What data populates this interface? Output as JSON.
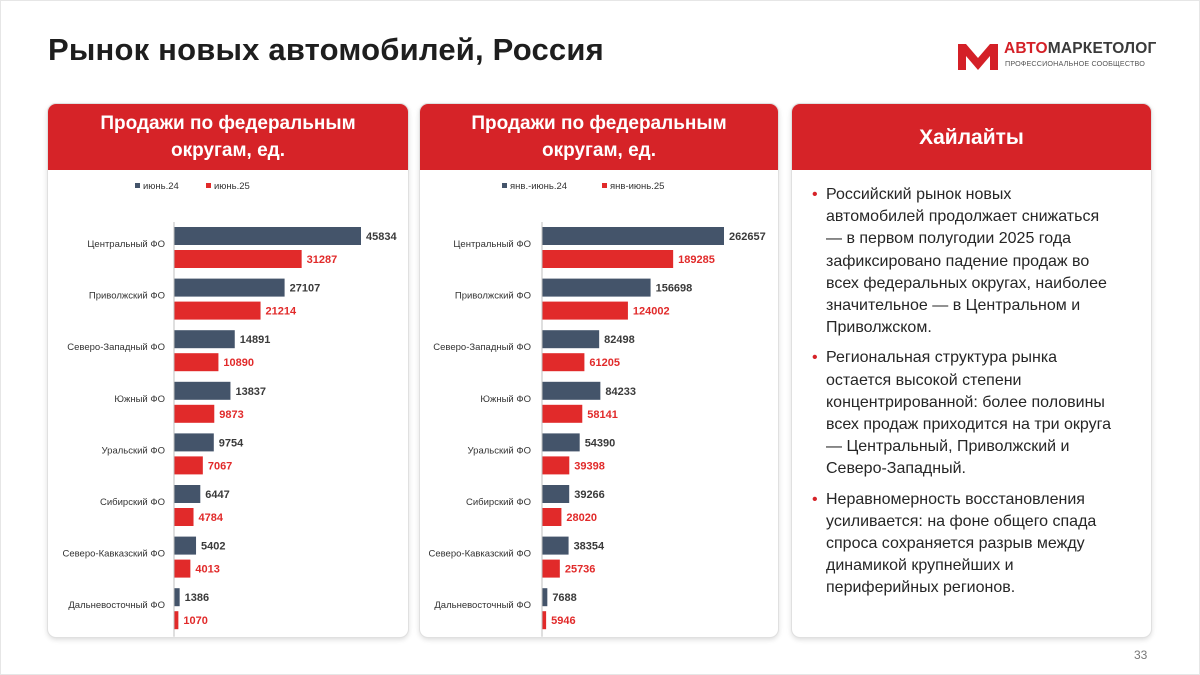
{
  "header": {
    "title": "Рынок новых автомобилей, Россия"
  },
  "logo": {
    "name_part1": "АВТО",
    "name_part2": "МАРКЕТОЛОГ",
    "tagline": "ПРОФЕССИОНАЛЬНОЕ СООБЩЕСТВО"
  },
  "colors": {
    "accent_red": "#d62328",
    "series_dark": "#44546a",
    "series_red": "#e12a2a"
  },
  "chart_data": [
    {
      "type": "bar",
      "orientation": "horizontal",
      "title": "Продажи по федеральным округам, ед.",
      "categories": [
        "Центральный ФО",
        "Приволжский ФО",
        "Северо-Западный ФО",
        "Южный ФО",
        "Уральский ФО",
        "Сибирский ФО",
        "Северо-Кавказский ФО",
        "Дальневосточный ФО"
      ],
      "series": [
        {
          "name": "июнь.24",
          "values": [
            45834,
            27107,
            14891,
            13837,
            9754,
            6447,
            5402,
            1386
          ]
        },
        {
          "name": "июнь.25",
          "values": [
            31287,
            21214,
            10890,
            9873,
            7067,
            4784,
            4013,
            1070
          ]
        }
      ],
      "xlim": [
        0,
        45834
      ],
      "legend_position": "top",
      "data_labels": true,
      "grid": false
    },
    {
      "type": "bar",
      "orientation": "horizontal",
      "title": "Продажи по федеральным округам, ед.",
      "categories": [
        "Центральный ФО",
        "Приволжский ФО",
        "Северо-Западный ФО",
        "Южный ФО",
        "Уральский ФО",
        "Сибирский ФО",
        "Северо-Кавказский ФО",
        "Дальневосточный ФО"
      ],
      "series": [
        {
          "name": "янв.-июнь.24",
          "values": [
            262657,
            156698,
            82498,
            84233,
            54390,
            39266,
            38354,
            7688
          ]
        },
        {
          "name": "янв-июнь.25",
          "values": [
            189285,
            124002,
            61205,
            58141,
            39398,
            28020,
            25736,
            5946
          ]
        }
      ],
      "xlim": [
        0,
        262657
      ],
      "legend_position": "top",
      "data_labels": true,
      "grid": false
    }
  ],
  "highlights": {
    "title": "Хайлайты",
    "bullet_glyph": "•",
    "bullets": [
      {
        "lines": [
          "Российский рынок новых",
          "автомобилей продолжает снижаться",
          "— в первом полугодии 2025 года",
          "зафиксировано падение продаж во",
          "всех федеральных округах, наиболее",
          "значительное — в Центральном и",
          "Приволжском."
        ]
      },
      {
        "lines": [
          "Региональная структура рынка",
          "остается высокой степени",
          "концентрированной: более половины",
          "всех продаж приходится на три округа",
          "— Центральный, Приволжский и",
          "Северо-Западный."
        ]
      },
      {
        "lines": [
          "Неравномерность восстановления",
          "усиливается: на фоне общего спада",
          "спроса сохраняется разрыв между",
          "динамикой крупнейших и",
          "периферийных регионов."
        ]
      }
    ]
  },
  "footer": {
    "page_number": "33"
  }
}
